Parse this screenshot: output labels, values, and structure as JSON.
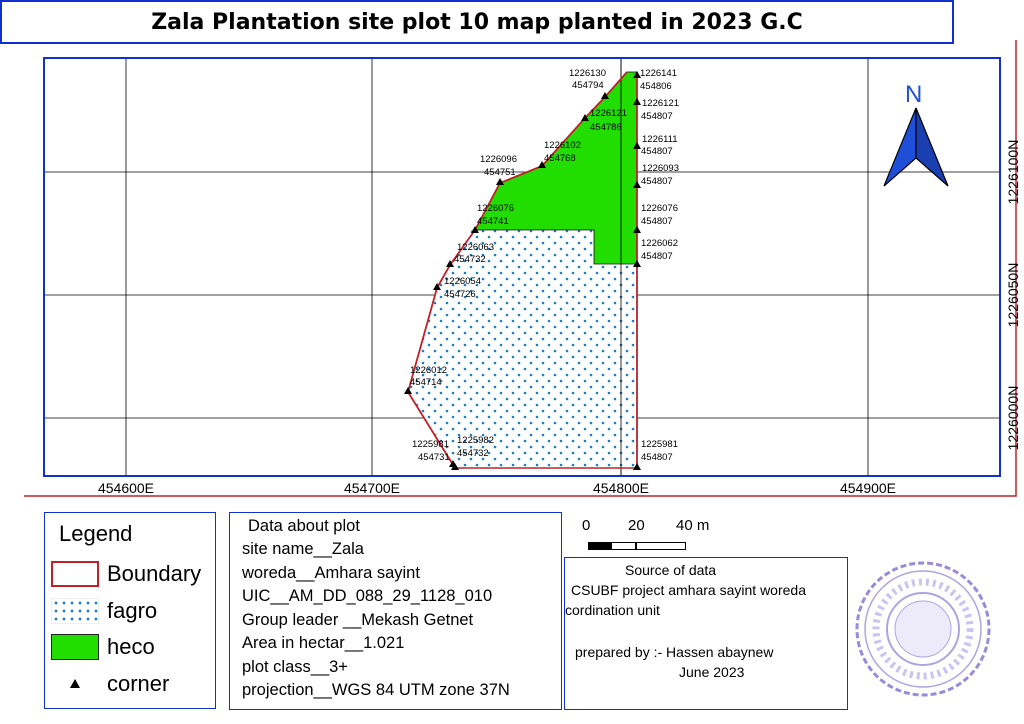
{
  "title": "Zala Plantation site plot 10 map planted in 2023 G.C",
  "map": {
    "x_ticks": [
      "454600E",
      "454700E",
      "454800E",
      "454900E"
    ],
    "y_ticks": [
      "1226100N",
      "1226050N",
      "1226000N"
    ],
    "north_label": "N",
    "corners": [
      {
        "n": "1226130",
        "e": "454794"
      },
      {
        "n": "1226141",
        "e": "454806"
      },
      {
        "n": "1226121",
        "e": "454807"
      },
      {
        "n": "1226121",
        "e": "454786"
      },
      {
        "n": "1226111",
        "e": "454807"
      },
      {
        "n": "1226102",
        "e": "454768"
      },
      {
        "n": "1226093",
        "e": "454807"
      },
      {
        "n": "1226096",
        "e": "454751"
      },
      {
        "n": "1226076",
        "e": "454807"
      },
      {
        "n": "1226076",
        "e": "454741"
      },
      {
        "n": "1226062",
        "e": "454807"
      },
      {
        "n": "1226063",
        "e": "454732"
      },
      {
        "n": "1226054",
        "e": "454726"
      },
      {
        "n": "1226012",
        "e": "454714"
      },
      {
        "n": "1225981",
        "e": "454807"
      },
      {
        "n": "1225982",
        "e": "454732"
      },
      {
        "n": "1225981",
        "e": "454731"
      }
    ]
  },
  "scale": {
    "labels": [
      "0",
      "20",
      "40 m"
    ]
  },
  "legend": {
    "title": "Legend",
    "items": [
      {
        "label": "Boundary",
        "color": "#c0202a"
      },
      {
        "label": "fagro",
        "color": "#1a7fbf"
      },
      {
        "label": "heco",
        "color": "#22dd00"
      },
      {
        "label": "corner",
        "color": "#000000"
      }
    ]
  },
  "plot_info": {
    "heading": "Data about plot",
    "lines": [
      "site name__Zala",
      "woreda__Amhara sayint",
      "UIC__AM_DD_088_29_1128_010",
      "Group leader __Mekash Getnet",
      "Area in hectar__1.021",
      "plot class__3+",
      "projection__WGS 84 UTM zone 37N"
    ]
  },
  "source": {
    "heading": "Source of data",
    "line1": "CSUBF project amhara sayint woreda",
    "line2": "cordination unit",
    "prepared_by": "prepared by :- Hassen abaynew",
    "date": "June 2023"
  },
  "colors": {
    "frame": "#1030d0",
    "boundary": "#c0202a",
    "heco": "#22dd00",
    "fagro_dot": "#1a7fbf",
    "arrow": "#1f4fd8"
  }
}
